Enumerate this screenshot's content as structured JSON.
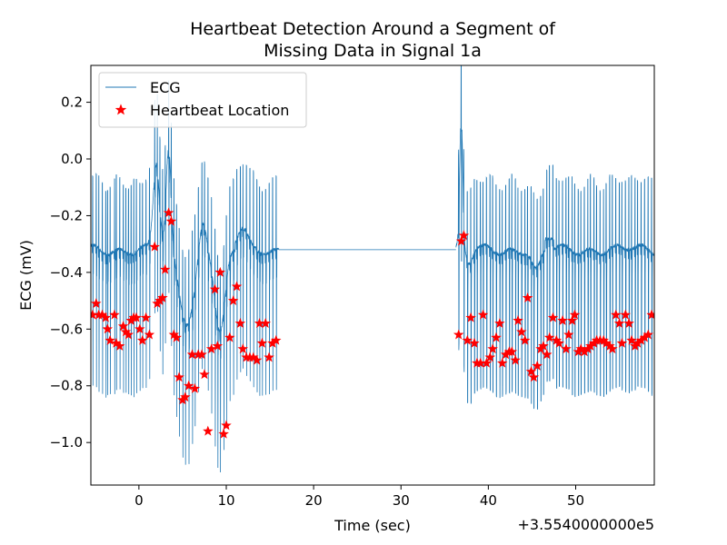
{
  "chart_data": {
    "type": "line",
    "title_line1": "Heartbeat Detection Around a Segment of",
    "title_line2": "Missing Data in Signal 1a",
    "xlabel": "Time (sec)",
    "ylabel": "ECG (mV)",
    "x_offset_label": "+3.5540000000e5",
    "xlim": [
      -5.5,
      59
    ],
    "ylim": [
      -1.15,
      0.33
    ],
    "x_ticks": [
      0,
      10,
      20,
      30,
      40,
      50
    ],
    "y_ticks": [
      0.2,
      0.0,
      -0.2,
      -0.4,
      -0.6,
      -0.8,
      -1.0
    ],
    "x_tick_labels": [
      "0",
      "10",
      "20",
      "30",
      "40",
      "50"
    ],
    "y_tick_labels": [
      "0.2",
      "0.0",
      "−0.2",
      "−0.4",
      "−0.6",
      "−0.8",
      "−1.0"
    ],
    "legend_position": "top-left",
    "legend": {
      "ecg_label": "ECG",
      "beat_label": "Heartbeat Location"
    },
    "colors": {
      "ecg": "#1f77b4",
      "beats": "#ff0000"
    },
    "ecg_segments": [
      {
        "x_start": -5.5,
        "x_end": 16.0,
        "state": "recorded"
      },
      {
        "x_start": 16.0,
        "x_end": 36.3,
        "value": -0.32,
        "state": "missing (flat)"
      },
      {
        "x_start": 36.3,
        "x_end": 59.0,
        "state": "recorded"
      }
    ],
    "series": [
      {
        "name": "Heartbeat Location",
        "points": [
          [
            -5.3,
            -0.55
          ],
          [
            -4.9,
            -0.51
          ],
          [
            -4.6,
            -0.55
          ],
          [
            -4.2,
            -0.55
          ],
          [
            -3.8,
            -0.56
          ],
          [
            -3.6,
            -0.6
          ],
          [
            -3.3,
            -0.64
          ],
          [
            -2.8,
            -0.55
          ],
          [
            -2.6,
            -0.65
          ],
          [
            -2.2,
            -0.66
          ],
          [
            -1.8,
            -0.59
          ],
          [
            -1.5,
            -0.61
          ],
          [
            -1.2,
            -0.62
          ],
          [
            -0.9,
            -0.57
          ],
          [
            -0.6,
            -0.56
          ],
          [
            -0.3,
            -0.56
          ],
          [
            0.1,
            -0.6
          ],
          [
            0.4,
            -0.64
          ],
          [
            0.8,
            -0.56
          ],
          [
            1.2,
            -0.62
          ],
          [
            1.8,
            -0.31
          ],
          [
            2.1,
            -0.51
          ],
          [
            2.4,
            -0.5
          ],
          [
            2.7,
            -0.49
          ],
          [
            3.0,
            -0.39
          ],
          [
            3.4,
            -0.19
          ],
          [
            3.7,
            -0.22
          ],
          [
            4.0,
            -0.62
          ],
          [
            4.3,
            -0.63
          ],
          [
            4.6,
            -0.77
          ],
          [
            5.0,
            -0.85
          ],
          [
            5.3,
            -0.84
          ],
          [
            5.7,
            -0.8
          ],
          [
            6.1,
            -0.69
          ],
          [
            6.4,
            -0.81
          ],
          [
            6.8,
            -0.69
          ],
          [
            7.2,
            -0.69
          ],
          [
            7.5,
            -0.76
          ],
          [
            7.9,
            -0.96
          ],
          [
            8.3,
            -0.67
          ],
          [
            8.7,
            -0.46
          ],
          [
            9.0,
            -0.66
          ],
          [
            9.3,
            -0.4
          ],
          [
            9.7,
            -0.97
          ],
          [
            10.0,
            -0.94
          ],
          [
            10.4,
            -0.63
          ],
          [
            10.8,
            -0.5
          ],
          [
            11.2,
            -0.45
          ],
          [
            11.6,
            -0.58
          ],
          [
            11.9,
            -0.67
          ],
          [
            12.3,
            -0.7
          ],
          [
            12.7,
            -0.7
          ],
          [
            13.1,
            -0.7
          ],
          [
            13.5,
            -0.71
          ],
          [
            13.8,
            -0.58
          ],
          [
            14.1,
            -0.65
          ],
          [
            14.5,
            -0.58
          ],
          [
            14.9,
            -0.7
          ],
          [
            15.3,
            -0.65
          ],
          [
            15.7,
            -0.64
          ],
          [
            36.6,
            -0.62
          ],
          [
            36.9,
            -0.29
          ],
          [
            37.2,
            -0.27
          ],
          [
            37.6,
            -0.64
          ],
          [
            38.0,
            -0.56
          ],
          [
            38.4,
            -0.65
          ],
          [
            38.7,
            -0.72
          ],
          [
            39.1,
            -0.72
          ],
          [
            39.4,
            -0.55
          ],
          [
            39.8,
            -0.72
          ],
          [
            40.2,
            -0.7
          ],
          [
            40.5,
            -0.67
          ],
          [
            40.9,
            -0.63
          ],
          [
            41.3,
            -0.58
          ],
          [
            41.6,
            -0.72
          ],
          [
            42.0,
            -0.69
          ],
          [
            42.4,
            -0.68
          ],
          [
            42.7,
            -0.68
          ],
          [
            43.1,
            -0.71
          ],
          [
            43.4,
            -0.57
          ],
          [
            43.8,
            -0.61
          ],
          [
            44.2,
            -0.64
          ],
          [
            44.5,
            -0.49
          ],
          [
            44.9,
            -0.75
          ],
          [
            45.2,
            -0.77
          ],
          [
            45.6,
            -0.73
          ],
          [
            46.0,
            -0.67
          ],
          [
            46.3,
            -0.66
          ],
          [
            46.7,
            -0.69
          ],
          [
            47.0,
            -0.63
          ],
          [
            47.4,
            -0.56
          ],
          [
            47.8,
            -0.64
          ],
          [
            48.1,
            -0.65
          ],
          [
            48.5,
            -0.57
          ],
          [
            48.9,
            -0.67
          ],
          [
            49.2,
            -0.62
          ],
          [
            49.6,
            -0.57
          ],
          [
            49.9,
            -0.55
          ],
          [
            50.3,
            -0.68
          ],
          [
            50.6,
            -0.67
          ],
          [
            51.0,
            -0.68
          ],
          [
            51.4,
            -0.67
          ],
          [
            51.7,
            -0.66
          ],
          [
            52.1,
            -0.65
          ],
          [
            52.4,
            -0.64
          ],
          [
            52.8,
            -0.64
          ],
          [
            53.2,
            -0.64
          ],
          [
            53.5,
            -0.65
          ],
          [
            53.9,
            -0.66
          ],
          [
            54.2,
            -0.67
          ],
          [
            54.6,
            -0.55
          ],
          [
            55.0,
            -0.58
          ],
          [
            55.3,
            -0.65
          ],
          [
            55.7,
            -0.55
          ],
          [
            56.1,
            -0.58
          ],
          [
            56.4,
            -0.64
          ],
          [
            56.8,
            -0.66
          ],
          [
            57.1,
            -0.65
          ],
          [
            57.5,
            -0.64
          ],
          [
            57.9,
            -0.63
          ],
          [
            58.3,
            -0.62
          ],
          [
            58.7,
            -0.55
          ]
        ]
      }
    ]
  }
}
